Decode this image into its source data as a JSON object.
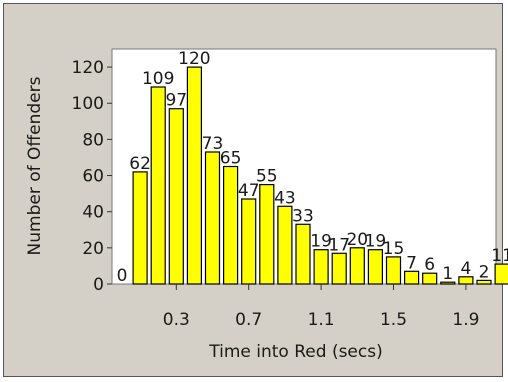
{
  "chart_data": {
    "type": "bar",
    "title": "",
    "xlabel": "Time into Red (secs)",
    "ylabel": "Number of Offenders",
    "x_ticks": [
      "0.3",
      "0.7",
      "1.1",
      "1.5",
      "1.9"
    ],
    "y_ticks": [
      0,
      20,
      40,
      60,
      80,
      100,
      120
    ],
    "ylim": [
      0,
      130
    ],
    "bar_color": "#ffff00",
    "bar_outline": "#000000",
    "plot_background": "#ffffff",
    "frame_background": "#d4d0c8",
    "grid": false,
    "legend": "none",
    "categories": [
      "0.0",
      "0.1",
      "0.2",
      "0.3",
      "0.4",
      "0.5",
      "0.6",
      "0.7",
      "0.8",
      "0.9",
      "1.0",
      "1.1",
      "1.2",
      "1.3",
      "1.4",
      "1.5",
      "1.6",
      "1.7",
      "1.8",
      "1.9",
      "2.0",
      "2.1"
    ],
    "values": [
      0,
      62,
      109,
      97,
      120,
      73,
      65,
      47,
      55,
      43,
      33,
      19,
      17,
      20,
      19,
      15,
      7,
      6,
      1,
      4,
      2,
      11
    ],
    "value_labels": [
      "0",
      "62",
      "109",
      "97",
      "120",
      "73",
      "65",
      "47",
      "55",
      "43",
      "33",
      "19",
      "17",
      "20",
      "19",
      "15",
      "7",
      "6",
      "1",
      "4",
      "2",
      "11"
    ]
  }
}
